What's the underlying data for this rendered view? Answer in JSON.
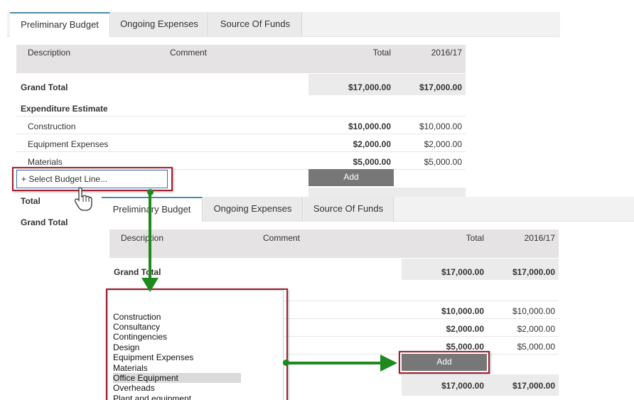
{
  "tabs": [
    "Preliminary Budget",
    "Ongoing Expenses",
    "Source Of Funds"
  ],
  "columns": {
    "description": "Description",
    "comment": "Comment",
    "total": "Total",
    "year": "2016/17"
  },
  "top": {
    "grand_total_label": "Grand Total",
    "grand_total": "$17,000.00",
    "grand_total_year": "$17,000.00",
    "section_label": "Expenditure Estimate",
    "rows": [
      {
        "label": "Construction",
        "total": "$10,000.00",
        "year": "$10,000.00"
      },
      {
        "label": "Equipment Expenses",
        "total": "$2,000.00",
        "year": "$2,000.00"
      },
      {
        "label": "Materials",
        "total": "$5,000.00",
        "year": "$5,000.00"
      }
    ],
    "select_placeholder": "+ Select Budget Line...",
    "add_label": "Add",
    "total_label": "Total",
    "grand_total_label_2": "Grand Total"
  },
  "bottom": {
    "grand_total_label": "Grand Total",
    "grand_total": "$17,000.00",
    "grand_total_year": "$17,000.00",
    "rows": [
      {
        "total": "$10,000.00",
        "year": "$10,000.00"
      },
      {
        "total": "$2,000.00",
        "year": "$2,000.00"
      },
      {
        "total": "$5,000.00",
        "year": "$5,000.00"
      }
    ],
    "add_label": "Add",
    "total": "$17,000.00",
    "total_year": "$17,000.00",
    "options": [
      "Construction",
      "Consultancy",
      "Contingencies",
      "Design",
      "Equipment Expenses",
      "Materials",
      "Office Equipment",
      "Overheads",
      "Plant and equipment"
    ],
    "selected_option": "Office Equipment"
  },
  "colors": {
    "accent": "#4e8aa8",
    "highlight": "#a02030",
    "arrow": "#1e8a1e",
    "button": "#777777"
  },
  "icons": {
    "cursor": "hand-pointer-icon"
  }
}
